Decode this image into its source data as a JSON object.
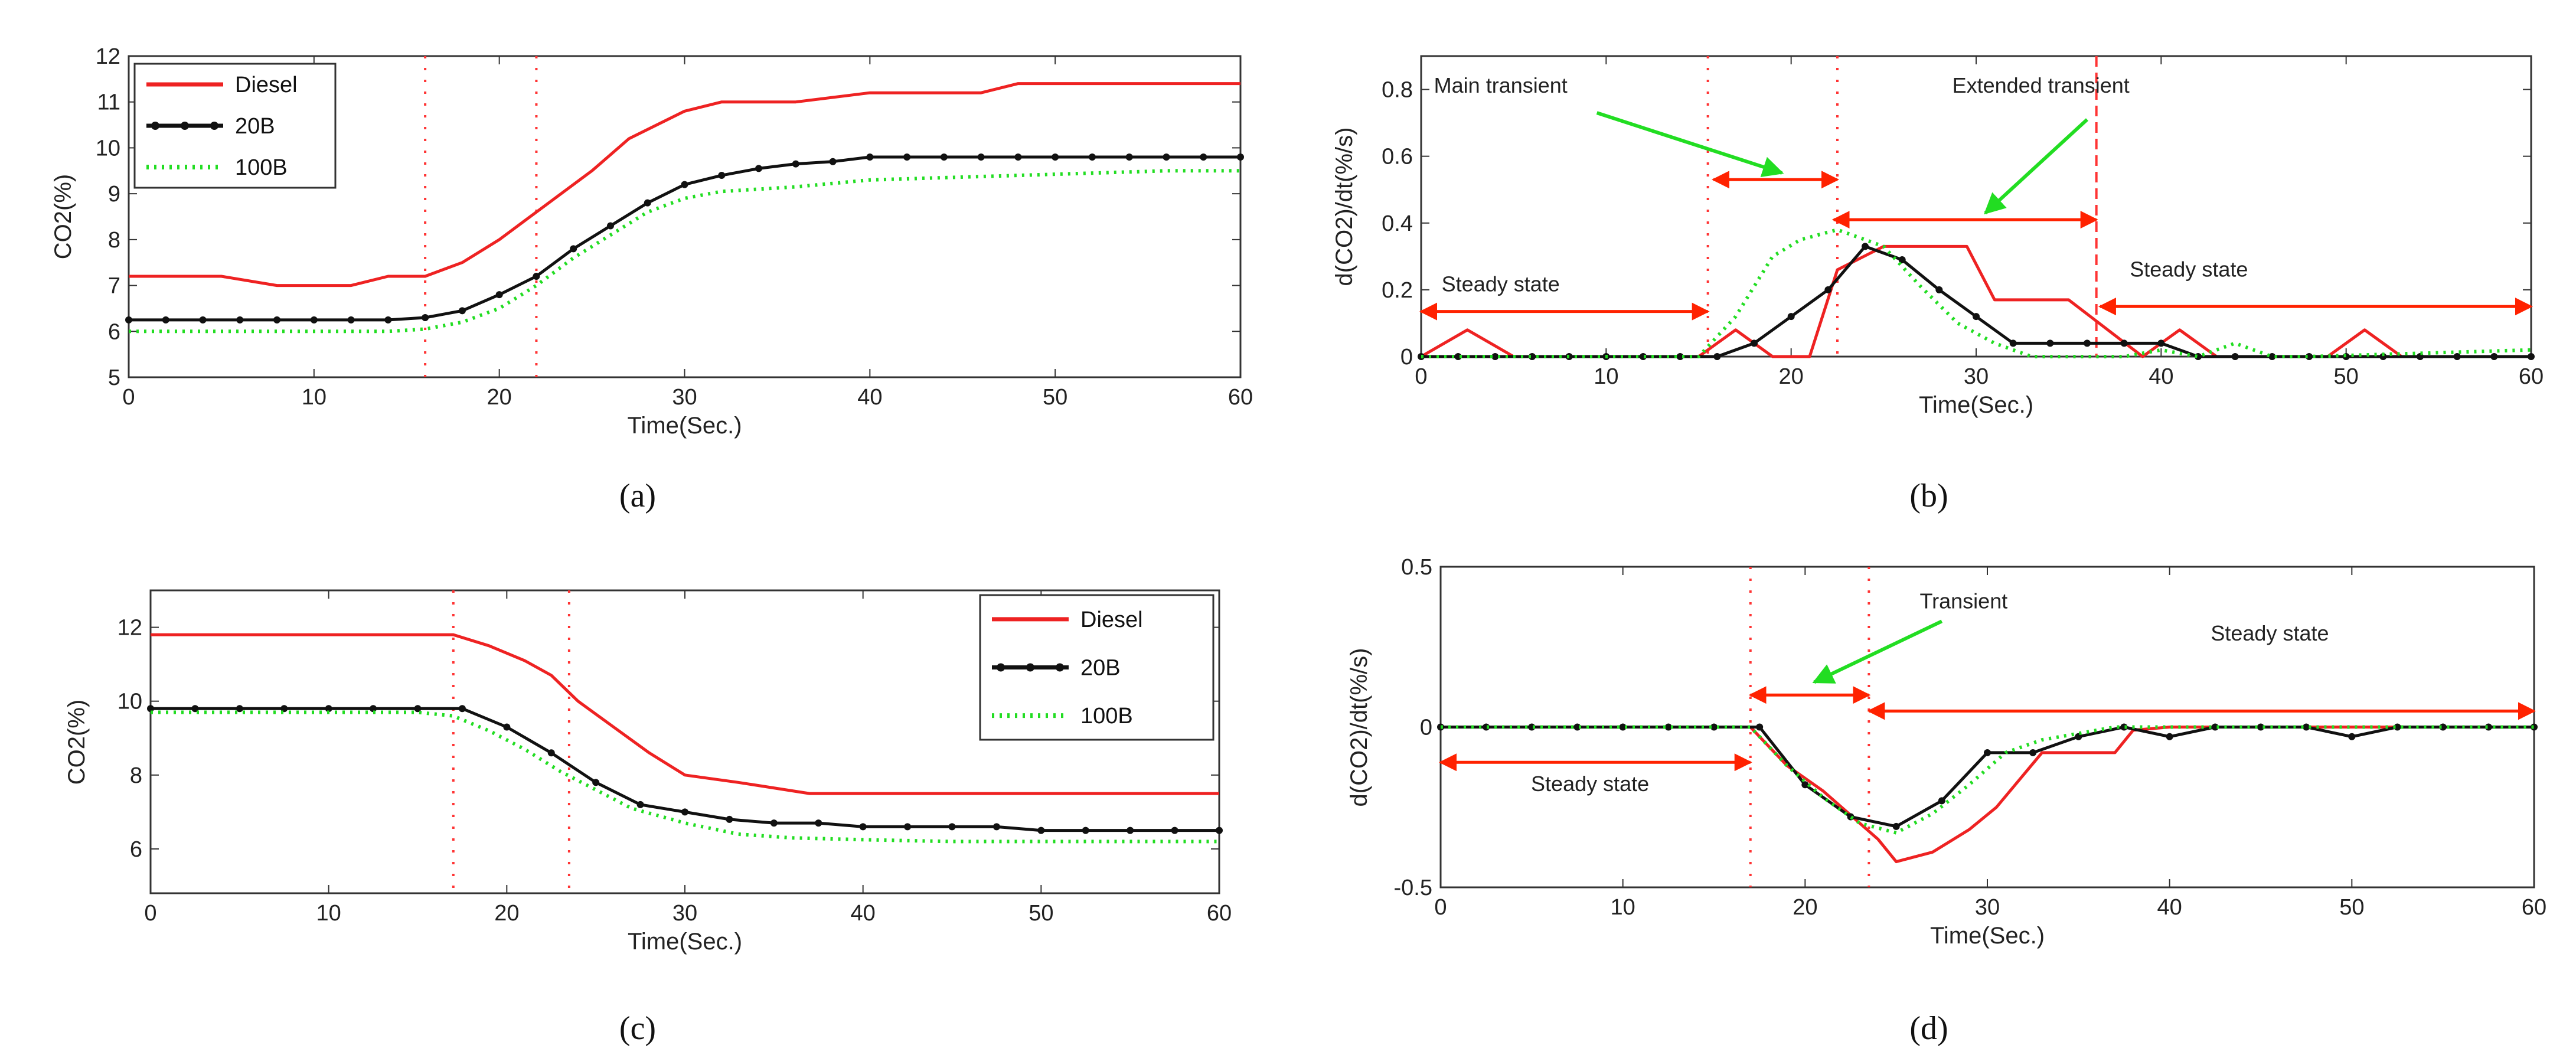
{
  "chart_data": [
    {
      "type": "line",
      "panel_label": "(a)",
      "xlabel": "Time(Sec.)",
      "ylabel": "CO2(%)",
      "xlim": [
        0,
        60
      ],
      "ylim": [
        5,
        12
      ],
      "xticks": [
        0,
        10,
        20,
        30,
        40,
        50,
        60
      ],
      "yticks": [
        5,
        6,
        7,
        8,
        9,
        10,
        11,
        12
      ],
      "legend": {
        "entries": [
          "Diesel",
          "20B",
          "100B"
        ],
        "placement": "top-left"
      },
      "vlines": [
        16,
        22
      ],
      "series": [
        {
          "name": "Diesel",
          "color": "#ee2222",
          "style": "solid",
          "markers": false,
          "x": [
            0,
            5,
            8,
            12,
            14,
            16,
            18,
            20,
            22,
            25,
            27,
            30,
            32,
            36,
            40,
            44,
            46,
            48,
            52,
            56,
            60
          ],
          "y": [
            7.2,
            7.2,
            7.0,
            7.0,
            7.2,
            7.2,
            7.5,
            8.0,
            8.6,
            9.5,
            10.2,
            10.8,
            11.0,
            11.0,
            11.2,
            11.2,
            11.2,
            11.4,
            11.4,
            11.4,
            11.4
          ]
        },
        {
          "name": "20B",
          "color": "#111111",
          "style": "solid",
          "markers": true,
          "x": [
            0,
            2,
            4,
            6,
            8,
            10,
            12,
            14,
            16,
            18,
            20,
            22,
            24,
            26,
            28,
            30,
            32,
            34,
            36,
            38,
            40,
            42,
            44,
            46,
            48,
            50,
            52,
            54,
            56,
            58,
            60
          ],
          "y": [
            6.25,
            6.25,
            6.25,
            6.25,
            6.25,
            6.25,
            6.25,
            6.25,
            6.3,
            6.45,
            6.8,
            7.2,
            7.8,
            8.3,
            8.8,
            9.2,
            9.4,
            9.55,
            9.65,
            9.7,
            9.8,
            9.8,
            9.8,
            9.8,
            9.8,
            9.8,
            9.8,
            9.8,
            9.8,
            9.8,
            9.8
          ]
        },
        {
          "name": "100B",
          "color": "#22dd22",
          "style": "dotted",
          "markers": false,
          "x": [
            0,
            5,
            10,
            14,
            16,
            18,
            20,
            22,
            24,
            26,
            28,
            30,
            32,
            36,
            40,
            44,
            48,
            52,
            56,
            60
          ],
          "y": [
            6.0,
            6.0,
            6.0,
            6.0,
            6.05,
            6.2,
            6.5,
            7.0,
            7.6,
            8.1,
            8.6,
            8.9,
            9.05,
            9.15,
            9.3,
            9.35,
            9.4,
            9.45,
            9.5,
            9.5
          ]
        }
      ]
    },
    {
      "type": "line",
      "panel_label": "(b)",
      "xlabel": "Time(Sec.)",
      "ylabel": "d(CO2)/dt(%/s)",
      "xlim": [
        0,
        60
      ],
      "ylim": [
        0,
        0.9
      ],
      "xticks": [
        0,
        10,
        20,
        30,
        40,
        50,
        60
      ],
      "yticks": [
        0,
        0.2,
        0.4,
        0.6,
        0.8
      ],
      "vlines": [
        15.5,
        22.5,
        36.5
      ],
      "annotations": [
        {
          "text": "Main transient",
          "x": 4.3,
          "y": 0.79
        },
        {
          "text": "Extended transient",
          "x": 33.5,
          "y": 0.79
        },
        {
          "text": "Steady state",
          "x": 4.3,
          "y": 0.195
        },
        {
          "text": "Steady state",
          "x": 41.5,
          "y": 0.24
        }
      ],
      "arrows": [
        {
          "kind": "double",
          "x1": 15.8,
          "y1": 0.53,
          "x2": 22.5,
          "y2": 0.53,
          "color": "#ff2200"
        },
        {
          "kind": "double",
          "x1": 22.3,
          "y1": 0.41,
          "x2": 36.5,
          "y2": 0.41,
          "color": "#ff2200"
        },
        {
          "kind": "double",
          "x1": 0,
          "y1": 0.135,
          "x2": 15.5,
          "y2": 0.135,
          "color": "#ff2200"
        },
        {
          "kind": "double",
          "x1": 36.7,
          "y1": 0.15,
          "x2": 60,
          "y2": 0.15,
          "color": "#ff2200"
        },
        {
          "kind": "pointer",
          "x1": 9.5,
          "y1": 0.73,
          "x2": 19.5,
          "y2": 0.55,
          "color": "#22dd22"
        },
        {
          "kind": "pointer",
          "x1": 36.0,
          "y1": 0.71,
          "x2": 30.5,
          "y2": 0.43,
          "color": "#22dd22"
        }
      ],
      "series": [
        {
          "name": "Diesel",
          "color": "#ee2222",
          "style": "solid",
          "markers": false,
          "x": [
            0,
            2.5,
            5,
            15,
            17,
            19,
            21,
            22.5,
            25,
            27,
            29.5,
            31,
            33,
            35,
            39,
            41,
            43,
            45,
            47,
            49,
            51,
            53,
            55,
            57,
            60
          ],
          "y": [
            0,
            0.08,
            0,
            0,
            0.08,
            0,
            0,
            0.26,
            0.33,
            0.33,
            0.33,
            0.17,
            0.17,
            0.17,
            0,
            0.08,
            0,
            0,
            0,
            0,
            0.08,
            0,
            0,
            0,
            0
          ]
        },
        {
          "name": "20B",
          "color": "#111111",
          "style": "solid",
          "markers": true,
          "x": [
            0,
            2,
            4,
            6,
            8,
            10,
            12,
            14,
            16,
            18,
            20,
            22,
            24,
            26,
            28,
            30,
            32,
            34,
            36,
            38,
            40,
            42,
            44,
            46,
            48,
            50,
            52,
            54,
            56,
            58,
            60
          ],
          "y": [
            0,
            0,
            0,
            0,
            0,
            0,
            0,
            0,
            0,
            0.04,
            0.12,
            0.2,
            0.33,
            0.29,
            0.2,
            0.12,
            0.04,
            0.04,
            0.04,
            0.04,
            0.04,
            0,
            0,
            0,
            0,
            0,
            0,
            0,
            0,
            0,
            0
          ]
        },
        {
          "name": "100B",
          "color": "#22dd22",
          "style": "dotted",
          "markers": false,
          "x": [
            0,
            15,
            17,
            19,
            20.5,
            22.5,
            25,
            27,
            29,
            31,
            33,
            35,
            38,
            40,
            42,
            44,
            46,
            48,
            60
          ],
          "y": [
            0,
            0,
            0.12,
            0.3,
            0.35,
            0.38,
            0.33,
            0.21,
            0.1,
            0.04,
            0,
            0,
            0,
            0.02,
            0,
            0.04,
            0,
            0,
            0.02
          ]
        }
      ]
    },
    {
      "type": "line",
      "panel_label": "(c)",
      "xlabel": "Time(Sec.)",
      "ylabel": "CO2(%)",
      "xlim": [
        0,
        60
      ],
      "ylim": [
        4.8,
        13
      ],
      "xticks": [
        0,
        10,
        20,
        30,
        40,
        50,
        60
      ],
      "yticks": [
        6,
        8,
        10,
        12
      ],
      "legend": {
        "entries": [
          "Diesel",
          "20B",
          "100B"
        ],
        "placement": "top-right"
      },
      "vlines": [
        17,
        23.5
      ],
      "series": [
        {
          "name": "Diesel",
          "color": "#ee2222",
          "style": "solid",
          "markers": false,
          "x": [
            0,
            5,
            10,
            15,
            17,
            19,
            21,
            22.5,
            24,
            26,
            28,
            30,
            33,
            37,
            40,
            45,
            50,
            55,
            60
          ],
          "y": [
            11.8,
            11.8,
            11.8,
            11.8,
            11.8,
            11.5,
            11.1,
            10.7,
            10.0,
            9.3,
            8.6,
            8.0,
            7.8,
            7.5,
            7.5,
            7.5,
            7.5,
            7.5,
            7.5
          ]
        },
        {
          "name": "20B",
          "color": "#111111",
          "style": "solid",
          "markers": true,
          "x": [
            0,
            2.5,
            5,
            7.5,
            10,
            12.5,
            15,
            17.5,
            20,
            22.5,
            25,
            27.5,
            30,
            32.5,
            35,
            37.5,
            40,
            42.5,
            45,
            47.5,
            50,
            52.5,
            55,
            57.5,
            60
          ],
          "y": [
            9.8,
            9.8,
            9.8,
            9.8,
            9.8,
            9.8,
            9.8,
            9.8,
            9.3,
            8.6,
            7.8,
            7.2,
            7.0,
            6.8,
            6.7,
            6.7,
            6.6,
            6.6,
            6.6,
            6.6,
            6.5,
            6.5,
            6.5,
            6.5,
            6.5
          ]
        },
        {
          "name": "100B",
          "color": "#22dd22",
          "style": "dotted",
          "markers": false,
          "x": [
            0,
            5,
            10,
            15,
            17,
            19,
            21,
            23,
            25,
            27,
            30,
            33,
            36,
            40,
            45,
            50,
            55,
            60
          ],
          "y": [
            9.7,
            9.7,
            9.7,
            9.7,
            9.6,
            9.2,
            8.7,
            8.1,
            7.6,
            7.1,
            6.7,
            6.4,
            6.3,
            6.25,
            6.2,
            6.2,
            6.2,
            6.2
          ]
        }
      ]
    },
    {
      "type": "line",
      "panel_label": "(d)",
      "xlabel": "Time(Sec.)",
      "ylabel": "d(CO2)/dt(%/s)",
      "xlim": [
        0,
        60
      ],
      "ylim": [
        -0.5,
        0.5
      ],
      "xticks": [
        0,
        10,
        20,
        30,
        40,
        50,
        60
      ],
      "yticks": [
        -0.5,
        0,
        0.5
      ],
      "vlines": [
        17,
        23.5
      ],
      "annotations": [
        {
          "text": "Transient",
          "x": 28.7,
          "y": 0.37
        },
        {
          "text": "Steady state",
          "x": 45.5,
          "y": 0.27
        },
        {
          "text": "Steady state",
          "x": 8.2,
          "y": -0.2
        }
      ],
      "arrows": [
        {
          "kind": "double",
          "x1": 17,
          "y1": 0.1,
          "x2": 23.5,
          "y2": 0.1,
          "color": "#ff2200"
        },
        {
          "kind": "double",
          "x1": 23.5,
          "y1": 0.05,
          "x2": 60,
          "y2": 0.05,
          "color": "#ff2200"
        },
        {
          "kind": "double",
          "x1": 0,
          "y1": -0.11,
          "x2": 17,
          "y2": -0.11,
          "color": "#ff2200"
        },
        {
          "kind": "pointer",
          "x1": 27.5,
          "y1": 0.33,
          "x2": 20.5,
          "y2": 0.14,
          "color": "#22dd22"
        }
      ],
      "series": [
        {
          "name": "Diesel",
          "color": "#ee2222",
          "style": "solid",
          "markers": false,
          "x": [
            0,
            17,
            19,
            21,
            23,
            24,
            25,
            27,
            29,
            30.5,
            33,
            35,
            37,
            38,
            40,
            45,
            50,
            55,
            60
          ],
          "y": [
            0,
            0,
            -0.12,
            -0.2,
            -0.3,
            -0.35,
            -0.42,
            -0.39,
            -0.32,
            -0.25,
            -0.08,
            -0.08,
            -0.08,
            -0.01,
            0,
            0,
            0,
            0,
            0
          ]
        },
        {
          "name": "20B",
          "color": "#111111",
          "style": "solid",
          "markers": true,
          "x": [
            0,
            2.5,
            5,
            7.5,
            10,
            12.5,
            15,
            17.5,
            20,
            22.5,
            25,
            27.5,
            30,
            32.5,
            35,
            37.5,
            40,
            42.5,
            45,
            47.5,
            50,
            52.5,
            55,
            57.5,
            60
          ],
          "y": [
            0,
            0,
            0,
            0,
            0,
            0,
            0,
            0,
            -0.18,
            -0.28,
            -0.31,
            -0.23,
            -0.08,
            -0.08,
            -0.03,
            0,
            -0.03,
            0,
            0,
            0,
            -0.03,
            0,
            0,
            0,
            0
          ]
        },
        {
          "name": "100B",
          "color": "#22dd22",
          "style": "dotted",
          "markers": false,
          "x": [
            0,
            17,
            19,
            21,
            23,
            25,
            27,
            29,
            31,
            33,
            35,
            37,
            39,
            41,
            60
          ],
          "y": [
            0,
            0,
            -0.12,
            -0.22,
            -0.3,
            -0.33,
            -0.27,
            -0.18,
            -0.08,
            -0.04,
            -0.02,
            0,
            0,
            0,
            0
          ]
        }
      ]
    }
  ]
}
